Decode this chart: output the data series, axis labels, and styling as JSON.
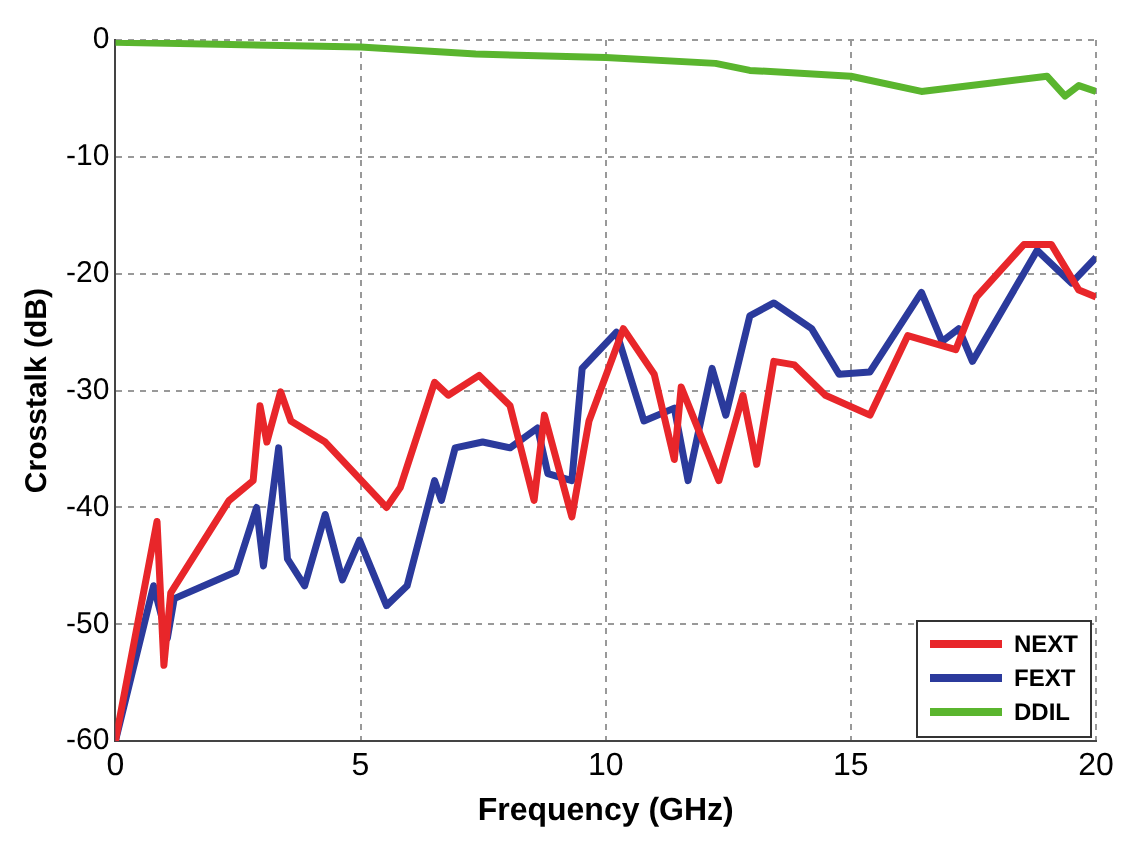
{
  "chart_data": {
    "type": "line",
    "xlabel": "Frequency (GHz)",
    "ylabel": "Crosstalk (dB)",
    "xlim": [
      0,
      20
    ],
    "ylim": [
      -60,
      0
    ],
    "xticks": [
      0,
      5,
      10,
      15,
      20
    ],
    "yticks": [
      -60,
      -50,
      -40,
      -30,
      -20,
      -10,
      0
    ],
    "grid": true,
    "legend": "bottom right",
    "marker": "none",
    "line_style": "solid",
    "series": [
      {
        "name": "NEXT",
        "color": "#e8262a",
        "x": [
          0,
          0.85,
          0.99,
          1.13,
          2.32,
          2.81,
          2.95,
          3.09,
          3.37,
          3.58,
          4.28,
          5.53,
          5.81,
          6.51,
          6.79,
          7.42,
          8.05,
          8.54,
          8.75,
          9.31,
          9.66,
          10.36,
          10.99,
          11.4,
          11.54,
          12.31,
          12.8,
          13.08,
          13.43,
          13.85,
          14.48,
          15.39,
          16.16,
          17.14,
          17.56,
          18.53,
          19.09,
          19.65,
          20
        ],
        "values": [
          -60,
          -41.2,
          -53.5,
          -47.3,
          -39.4,
          -37.7,
          -31.3,
          -34.4,
          -30.1,
          -32.6,
          -34.4,
          -40,
          -38.3,
          -29.3,
          -30.4,
          -28.7,
          -31.3,
          -39.4,
          -32.1,
          -40.8,
          -32.6,
          -24.7,
          -28.6,
          -35.9,
          -29.7,
          -37.7,
          -30.4,
          -36.3,
          -27.5,
          -27.8,
          -30.4,
          -32.1,
          -25.3,
          -26.5,
          -22,
          -17.5,
          -17.5,
          -21.4,
          -22
        ]
      },
      {
        "name": "FEXT",
        "color": "#2b3a9c",
        "x": [
          0,
          0.78,
          1.06,
          1.2,
          2.46,
          2.88,
          3.02,
          3.33,
          3.51,
          3.86,
          4.28,
          4.63,
          4.98,
          5.53,
          5.95,
          6.51,
          6.65,
          6.93,
          7.49,
          8.05,
          8.61,
          8.82,
          9.31,
          9.52,
          10.22,
          10.78,
          11.4,
          11.68,
          12.17,
          12.45,
          12.94,
          13.43,
          14.2,
          14.76,
          15.39,
          16.44,
          16.86,
          17.2,
          17.48,
          18.8,
          19.5,
          20
        ],
        "values": [
          -60,
          -46.7,
          -51.2,
          -47.8,
          -45.5,
          -40,
          -45,
          -34.9,
          -44.4,
          -46.7,
          -40.6,
          -46.2,
          -42.8,
          -48.4,
          -46.7,
          -37.7,
          -39.4,
          -34.9,
          -34.4,
          -34.9,
          -33.2,
          -37.1,
          -37.7,
          -28.1,
          -25,
          -32.6,
          -31.5,
          -37.7,
          -28.1,
          -32.1,
          -23.6,
          -22.5,
          -24.7,
          -28.6,
          -28.4,
          -21.6,
          -25.8,
          -24.7,
          -27.5,
          -18,
          -20.8,
          -18.6
        ]
      },
      {
        "name": "DDIL",
        "color": "#5ab52e",
        "x": [
          0,
          5,
          7.35,
          10,
          12.24,
          12.94,
          15,
          16.44,
          17.83,
          19,
          19.37,
          19.65,
          20
        ],
        "values": [
          -0.2,
          -0.6,
          -1.2,
          -1.5,
          -2,
          -2.6,
          -3.1,
          -4.4,
          -3.7,
          -3.1,
          -4.8,
          -3.9,
          -4.4
        ]
      }
    ]
  }
}
